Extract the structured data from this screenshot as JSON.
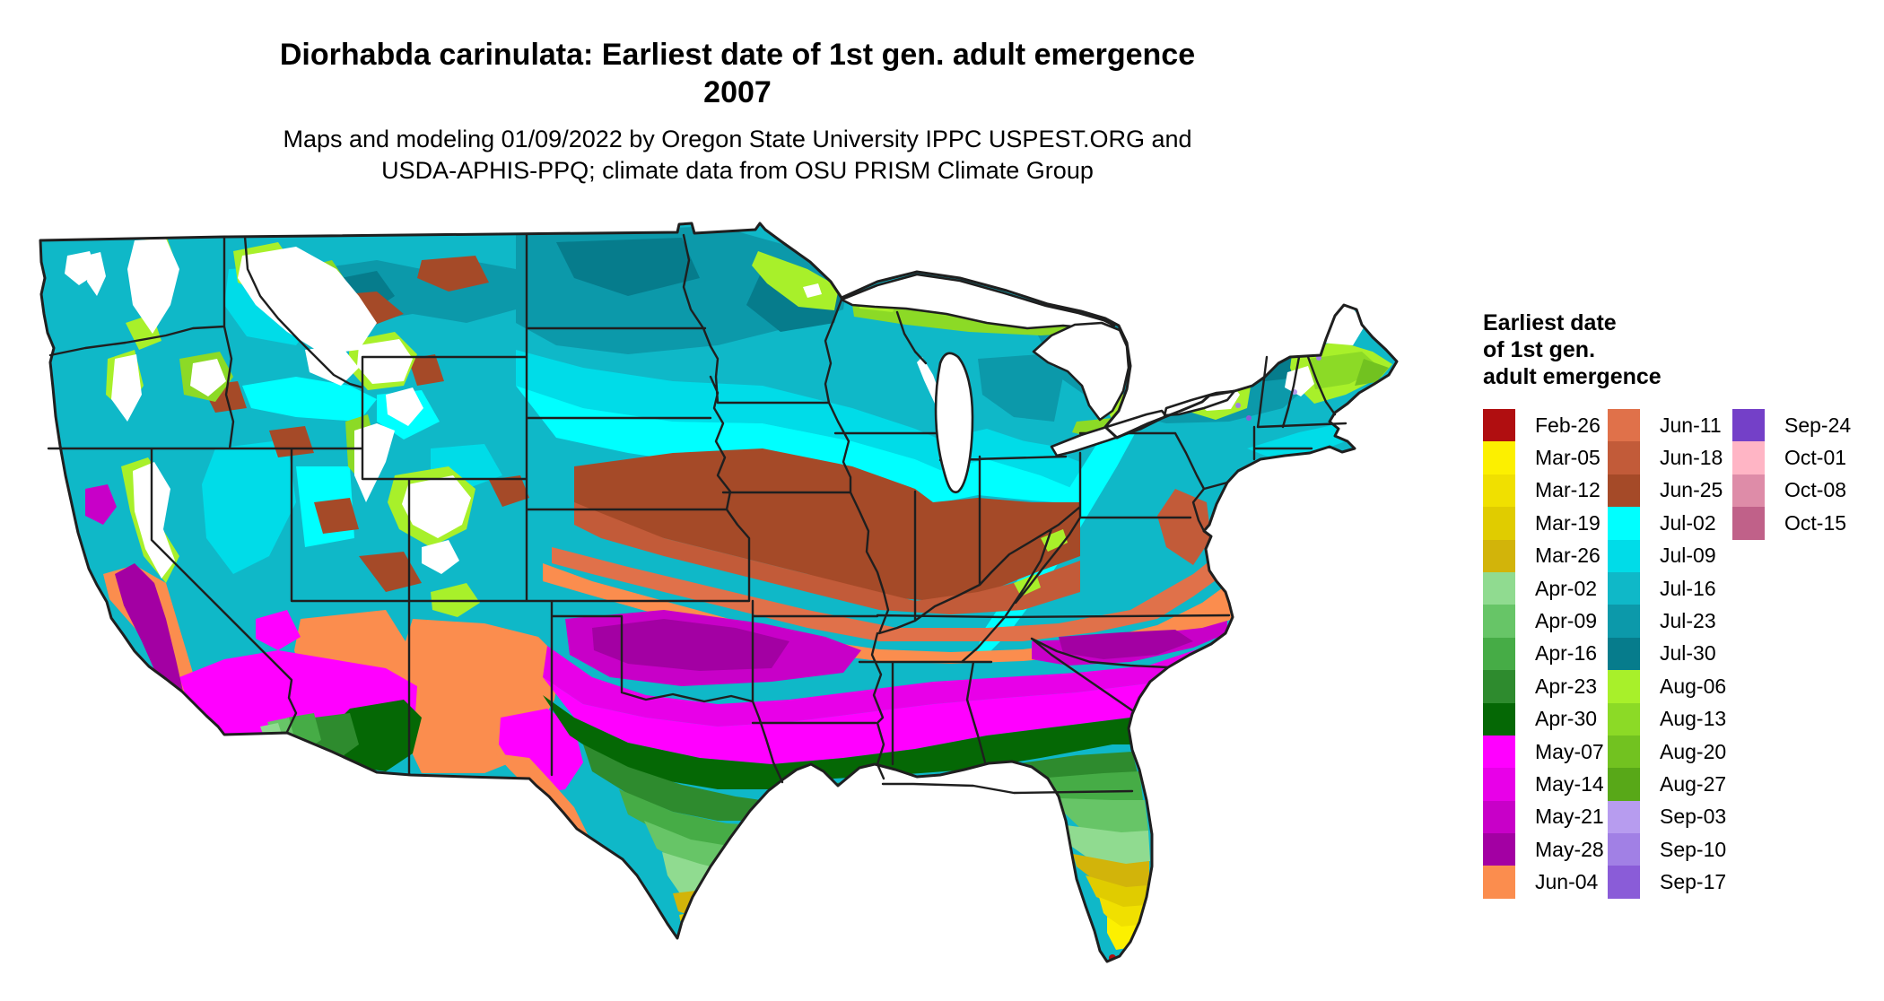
{
  "header": {
    "title_line1": "Diorhabda carinulata: Earliest date of 1st gen. adult emergence",
    "title_line2": "2007",
    "subtitle_line1": "Maps and modeling 01/09/2022 by Oregon State University IPPC USPEST.ORG and",
    "subtitle_line2": "USDA-APHIS-PPQ; climate data from OSU PRISM Climate Group"
  },
  "legend": {
    "title_lines": [
      "Earliest date",
      "of 1st gen.",
      "adult emergence"
    ],
    "columns": [
      [
        {
          "label": "Feb-26",
          "color": "#B00E10"
        },
        {
          "label": "Mar-05",
          "color": "#FCF000"
        },
        {
          "label": "Mar-12",
          "color": "#F0E000"
        },
        {
          "label": "Mar-19",
          "color": "#E0CC00"
        },
        {
          "label": "Mar-26",
          "color": "#D2B40A"
        },
        {
          "label": "Apr-02",
          "color": "#90DB90"
        },
        {
          "label": "Apr-09",
          "color": "#67C567"
        },
        {
          "label": "Apr-16",
          "color": "#46AC46"
        },
        {
          "label": "Apr-23",
          "color": "#2E8B2E"
        },
        {
          "label": "Apr-30",
          "color": "#056805"
        },
        {
          "label": "May-07",
          "color": "#FF00FF"
        },
        {
          "label": "May-14",
          "color": "#E800E8"
        },
        {
          "label": "May-21",
          "color": "#C800C8"
        },
        {
          "label": "May-28",
          "color": "#A300A3"
        },
        {
          "label": "Jun-04",
          "color": "#FB8D4E"
        }
      ],
      [
        {
          "label": "Jun-11",
          "color": "#E0714A"
        },
        {
          "label": "Jun-18",
          "color": "#C25B39"
        },
        {
          "label": "Jun-25",
          "color": "#A54A28"
        },
        {
          "label": "Jul-02",
          "color": "#00FFFF"
        },
        {
          "label": "Jul-09",
          "color": "#00DCE8"
        },
        {
          "label": "Jul-16",
          "color": "#0FB8C8"
        },
        {
          "label": "Jul-23",
          "color": "#0C99AA"
        },
        {
          "label": "Jul-30",
          "color": "#067C8C"
        },
        {
          "label": "Aug-06",
          "color": "#A8F02A"
        },
        {
          "label": "Aug-13",
          "color": "#8CDA26"
        },
        {
          "label": "Aug-20",
          "color": "#72C220"
        },
        {
          "label": "Aug-27",
          "color": "#58A818"
        },
        {
          "label": "Sep-03",
          "color": "#B79CEF"
        },
        {
          "label": "Sep-10",
          "color": "#A180E5"
        },
        {
          "label": "Sep-17",
          "color": "#8A5CD8"
        }
      ],
      [
        {
          "label": "Sep-24",
          "color": "#7440C8"
        },
        {
          "label": "Oct-01",
          "color": "#FFB5C5"
        },
        {
          "label": "Oct-08",
          "color": "#DE8CA8"
        },
        {
          "label": "Oct-15",
          "color": "#C06189"
        }
      ]
    ]
  },
  "map": {
    "no_data_color": "#FFFFFF",
    "border_color": "#1F1F1F",
    "ocean_color": "#FFFFFF"
  }
}
